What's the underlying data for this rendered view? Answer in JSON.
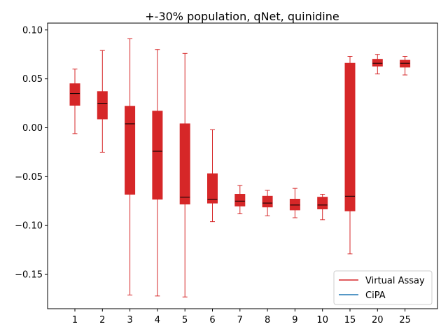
{
  "chart_data": {
    "type": "box",
    "title": "+-30% population, qNet, quinidine",
    "xlabel": "",
    "ylabel": "",
    "categories": [
      "1",
      "2",
      "3",
      "4",
      "5",
      "6",
      "7",
      "8",
      "9",
      "10",
      "15",
      "20",
      "25"
    ],
    "ylim": [
      -0.185,
      0.107
    ],
    "yticks": [
      0.1,
      0.05,
      0.0,
      -0.05,
      -0.1,
      -0.15
    ],
    "ytick_labels": [
      "0.10",
      "0.05",
      "0.00",
      "−0.05",
      "−0.10",
      "−0.15"
    ],
    "grid": false,
    "legend_position": "lower-right",
    "series": [
      {
        "name": "Virtual Assay",
        "color": "#d62728",
        "boxes": [
          {
            "whisker_low": -0.006,
            "q1": 0.023,
            "median": 0.035,
            "q3": 0.045,
            "whisker_high": 0.06
          },
          {
            "whisker_low": -0.025,
            "q1": 0.009,
            "median": 0.025,
            "q3": 0.037,
            "whisker_high": 0.079
          },
          {
            "whisker_low": -0.171,
            "q1": -0.068,
            "median": 0.004,
            "q3": 0.022,
            "whisker_high": 0.091
          },
          {
            "whisker_low": -0.172,
            "q1": -0.073,
            "median": -0.024,
            "q3": 0.017,
            "whisker_high": 0.08
          },
          {
            "whisker_low": -0.173,
            "q1": -0.078,
            "median": -0.071,
            "q3": 0.004,
            "whisker_high": 0.076
          },
          {
            "whisker_low": -0.096,
            "q1": -0.077,
            "median": -0.073,
            "q3": -0.047,
            "whisker_high": -0.002
          },
          {
            "whisker_low": -0.088,
            "q1": -0.08,
            "median": -0.075,
            "q3": -0.068,
            "whisker_high": -0.059
          },
          {
            "whisker_low": -0.09,
            "q1": -0.081,
            "median": -0.077,
            "q3": -0.07,
            "whisker_high": -0.064
          },
          {
            "whisker_low": -0.092,
            "q1": -0.084,
            "median": -0.079,
            "q3": -0.073,
            "whisker_high": -0.062
          },
          {
            "whisker_low": -0.094,
            "q1": -0.083,
            "median": -0.079,
            "q3": -0.071,
            "whisker_high": -0.068
          },
          {
            "whisker_low": -0.129,
            "q1": -0.085,
            "median": -0.07,
            "q3": 0.066,
            "whisker_high": 0.073
          },
          {
            "whisker_low": 0.055,
            "q1": 0.063,
            "median": 0.066,
            "q3": 0.07,
            "whisker_high": 0.075
          },
          {
            "whisker_low": 0.054,
            "q1": 0.062,
            "median": 0.066,
            "q3": 0.069,
            "whisker_high": 0.073
          }
        ]
      },
      {
        "name": "CiPA",
        "color": "#1f77b4",
        "boxes": []
      }
    ]
  }
}
